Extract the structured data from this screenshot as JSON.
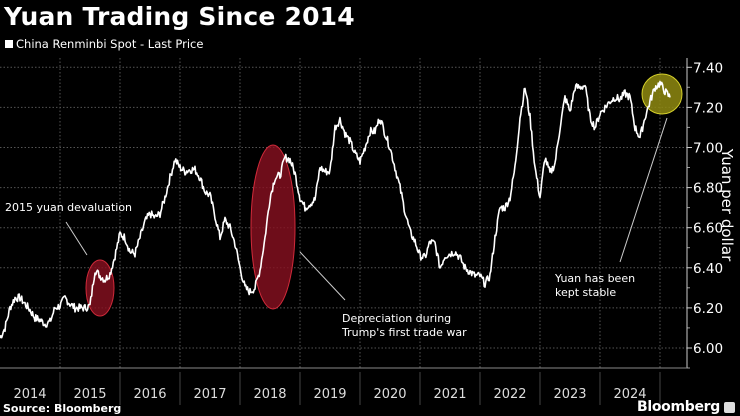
{
  "title": "Yuan Trading Since 2014",
  "legend_label": "China Renminbi Spot - Last Price",
  "source": "Source: Bloomberg",
  "brand": "Bloomberg",
  "colors": {
    "background": "#000000",
    "line": "#ffffff",
    "highlight_red": "#b0182a",
    "highlight_yellow": "#d4cf2a"
  },
  "chart_data": {
    "type": "line",
    "title": "Yuan Trading Since 2014",
    "ylabel": "Yuan per dollar",
    "ylim": [
      5.97,
      7.48
    ],
    "yticks": [
      "6.00",
      "6.20",
      "6.40",
      "6.60",
      "6.80",
      "7.00",
      "7.20",
      "7.40"
    ],
    "xticks": [
      "2014",
      "2015",
      "2016",
      "2017",
      "2018",
      "2019",
      "2020",
      "2021",
      "2022",
      "2023",
      "2024"
    ],
    "grid": true,
    "y_axis_side": "right",
    "series": [
      {
        "name": "China Renminbi Spot - Last Price",
        "start": "2014-01",
        "frequency": "monthly",
        "values": [
          6.05,
          6.1,
          6.2,
          6.25,
          6.25,
          6.22,
          6.19,
          6.15,
          6.14,
          6.12,
          6.13,
          6.2,
          6.21,
          6.25,
          6.22,
          6.2,
          6.2,
          6.2,
          6.21,
          6.39,
          6.36,
          6.34,
          6.37,
          6.46,
          6.57,
          6.55,
          6.48,
          6.47,
          6.55,
          6.63,
          6.67,
          6.65,
          6.67,
          6.75,
          6.85,
          6.94,
          6.9,
          6.88,
          6.89,
          6.89,
          6.85,
          6.78,
          6.76,
          6.66,
          6.55,
          6.64,
          6.6,
          6.52,
          6.4,
          6.3,
          6.28,
          6.3,
          6.39,
          6.55,
          6.75,
          6.85,
          6.86,
          6.95,
          6.94,
          6.87,
          6.75,
          6.7,
          6.72,
          6.74,
          6.9,
          6.88,
          6.88,
          7.1,
          7.14,
          7.07,
          7.03,
          6.97,
          6.93,
          7.0,
          7.08,
          7.08,
          7.15,
          7.07,
          7.0,
          6.9,
          6.8,
          6.68,
          6.58,
          6.53,
          6.46,
          6.45,
          6.53,
          6.52,
          6.4,
          6.46,
          6.47,
          6.48,
          6.45,
          6.4,
          6.38,
          6.36,
          6.36,
          6.32,
          6.36,
          6.55,
          6.7,
          6.7,
          6.75,
          6.9,
          7.15,
          7.3,
          7.15,
          6.9,
          6.75,
          6.95,
          6.87,
          6.92,
          7.1,
          7.25,
          7.18,
          7.3,
          7.3,
          7.31,
          7.15,
          7.1,
          7.17,
          7.2,
          7.23,
          7.25,
          7.24,
          7.27,
          7.25,
          7.1,
          7.05,
          7.15,
          7.23,
          7.3,
          7.32,
          7.28,
          7.25
        ]
      }
    ],
    "annotations": [
      {
        "text": "2015 yuan devaluation",
        "period": "2015-08",
        "highlight": "red"
      },
      {
        "text_lines": [
          "Depreciation during",
          "Trump's first trade war"
        ],
        "period": "2018",
        "highlight": "red"
      },
      {
        "text_lines": [
          "Yuan has been",
          "kept stable"
        ],
        "period": "2024-12 to 2025-03",
        "highlight": "yellow"
      }
    ]
  }
}
